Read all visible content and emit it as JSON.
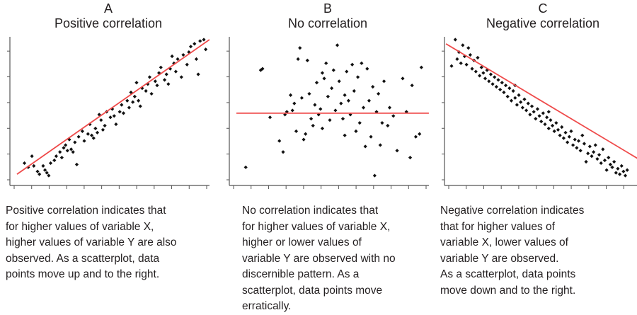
{
  "chart_data": [
    {
      "type": "scatter",
      "label": "A",
      "title": "Positive correlation",
      "xlim": [
        0,
        10
      ],
      "ylim": [
        0,
        10
      ],
      "trend_line": {
        "x": [
          0,
          10.3
        ],
        "y": [
          0.3,
          10.0
        ]
      },
      "points": [
        [
          0.4,
          1.1
        ],
        [
          0.6,
          0.8
        ],
        [
          0.8,
          1.6
        ],
        [
          0.9,
          0.9
        ],
        [
          1.1,
          0.5
        ],
        [
          1.2,
          0.3
        ],
        [
          1.4,
          0.9
        ],
        [
          1.5,
          0.6
        ],
        [
          1.6,
          0.4
        ],
        [
          1.7,
          0.2
        ],
        [
          1.8,
          1.1
        ],
        [
          2.0,
          1.3
        ],
        [
          2.1,
          1.6
        ],
        [
          2.3,
          1.9
        ],
        [
          2.4,
          1.5
        ],
        [
          2.5,
          2.2
        ],
        [
          2.6,
          2.4
        ],
        [
          2.7,
          2.0
        ],
        [
          2.8,
          2.8
        ],
        [
          2.9,
          2.1
        ],
        [
          3.0,
          1.9
        ],
        [
          3.1,
          2.6
        ],
        [
          3.2,
          1.0
        ],
        [
          3.3,
          3.0
        ],
        [
          3.5,
          3.4
        ],
        [
          3.6,
          2.7
        ],
        [
          3.8,
          3.2
        ],
        [
          3.9,
          3.9
        ],
        [
          4.0,
          3.1
        ],
        [
          4.1,
          2.9
        ],
        [
          4.2,
          3.6
        ],
        [
          4.3,
          3.3
        ],
        [
          4.5,
          4.2
        ],
        [
          4.6,
          3.5
        ],
        [
          4.7,
          3.8
        ],
        [
          4.8,
          4.8
        ],
        [
          5.0,
          4.4
        ],
        [
          5.1,
          5.0
        ],
        [
          5.2,
          4.5
        ],
        [
          5.3,
          3.9
        ],
        [
          5.5,
          4.8
        ],
        [
          5.6,
          5.3
        ],
        [
          5.7,
          4.7
        ],
        [
          5.9,
          5.6
        ],
        [
          6.0,
          5.1
        ],
        [
          6.1,
          6.2
        ],
        [
          6.2,
          5.5
        ],
        [
          6.3,
          5.9
        ],
        [
          6.5,
          5.6
        ],
        [
          6.6,
          5.2
        ],
        [
          6.7,
          6.5
        ],
        [
          6.9,
          6.3
        ],
        [
          7.0,
          6.8
        ],
        [
          7.1,
          7.3
        ],
        [
          7.2,
          6.1
        ],
        [
          7.4,
          7.0
        ],
        [
          7.5,
          6.7
        ],
        [
          7.6,
          7.6
        ],
        [
          7.7,
          8.0
        ],
        [
          7.9,
          7.1
        ],
        [
          8.0,
          7.5
        ],
        [
          8.1,
          6.8
        ],
        [
          8.2,
          7.9
        ],
        [
          8.4,
          8.3
        ],
        [
          8.5,
          7.7
        ],
        [
          8.6,
          8.6
        ],
        [
          8.8,
          7.3
        ],
        [
          8.9,
          8.9
        ],
        [
          9.1,
          8.2
        ],
        [
          9.2,
          9.1
        ],
        [
          9.3,
          9.5
        ],
        [
          9.5,
          9.7
        ],
        [
          9.6,
          8.6
        ],
        [
          9.8,
          9.9
        ],
        [
          10.0,
          10.0
        ],
        [
          10.1,
          9.3
        ],
        [
          9.7,
          7.5
        ],
        [
          8.3,
          8.8
        ],
        [
          6.4,
          6.9
        ],
        [
          4.4,
          4.6
        ]
      ]
    },
    {
      "type": "scatter",
      "label": "B",
      "title": "No correlation",
      "xlim": [
        0,
        10
      ],
      "ylim": [
        0,
        10
      ],
      "trend_line": {
        "x": [
          0,
          10.3
        ],
        "y": [
          4.7,
          4.7
        ]
      },
      "points": [
        [
          0.5,
          0.8
        ],
        [
          1.3,
          7.8
        ],
        [
          1.4,
          7.9
        ],
        [
          1.8,
          4.4
        ],
        [
          2.3,
          2.7
        ],
        [
          2.5,
          1.9
        ],
        [
          2.6,
          4.6
        ],
        [
          2.7,
          4.8
        ],
        [
          2.9,
          6.0
        ],
        [
          3.0,
          4.9
        ],
        [
          3.2,
          3.4
        ],
        [
          3.3,
          8.6
        ],
        [
          3.4,
          9.4
        ],
        [
          3.5,
          5.8
        ],
        [
          3.6,
          2.8
        ],
        [
          3.7,
          3.2
        ],
        [
          3.8,
          8.5
        ],
        [
          3.9,
          6.1
        ],
        [
          4.0,
          4.3
        ],
        [
          4.1,
          3.8
        ],
        [
          4.2,
          5.3
        ],
        [
          4.3,
          6.9
        ],
        [
          4.4,
          4.6
        ],
        [
          4.5,
          5.0
        ],
        [
          4.6,
          3.6
        ],
        [
          4.7,
          7.2
        ],
        [
          4.8,
          8.3
        ],
        [
          4.9,
          5.9
        ],
        [
          5.0,
          4.2
        ],
        [
          5.1,
          6.5
        ],
        [
          5.2,
          7.8
        ],
        [
          5.3,
          4.9
        ],
        [
          5.4,
          9.6
        ],
        [
          5.5,
          7.0
        ],
        [
          5.6,
          5.4
        ],
        [
          5.7,
          4.3
        ],
        [
          5.8,
          3.1
        ],
        [
          5.9,
          7.7
        ],
        [
          6.0,
          5.6
        ],
        [
          6.1,
          4.6
        ],
        [
          6.2,
          8.2
        ],
        [
          6.3,
          6.3
        ],
        [
          6.4,
          3.4
        ],
        [
          6.5,
          7.3
        ],
        [
          6.6,
          4.0
        ],
        [
          6.7,
          8.3
        ],
        [
          6.8,
          5.1
        ],
        [
          6.9,
          2.3
        ],
        [
          7.0,
          7.9
        ],
        [
          7.1,
          5.6
        ],
        [
          7.2,
          3.0
        ],
        [
          7.3,
          6.6
        ],
        [
          7.4,
          0.2
        ],
        [
          7.5,
          4.8
        ],
        [
          7.6,
          6.1
        ],
        [
          7.7,
          2.4
        ],
        [
          7.8,
          4.0
        ],
        [
          7.9,
          7.0
        ],
        [
          8.1,
          3.8
        ],
        [
          8.2,
          5.1
        ],
        [
          8.4,
          4.5
        ],
        [
          8.6,
          2.0
        ],
        [
          8.9,
          7.2
        ],
        [
          9.1,
          4.8
        ],
        [
          9.3,
          1.5
        ],
        [
          9.4,
          6.7
        ],
        [
          9.6,
          3.0
        ],
        [
          9.8,
          3.2
        ],
        [
          9.9,
          8.0
        ],
        [
          3.1,
          5.4
        ],
        [
          4.6,
          7.6
        ],
        [
          5.8,
          6.0
        ]
      ]
    },
    {
      "type": "scatter",
      "label": "C",
      "title": "Negative correlation",
      "xlim": [
        0,
        10
      ],
      "ylim": [
        0,
        10
      ],
      "trend_line": {
        "x": [
          -0.3,
          10.0
        ],
        "y": [
          9.7,
          1.4
        ]
      },
      "points": [
        [
          0.0,
          8.1
        ],
        [
          0.2,
          10.0
        ],
        [
          0.3,
          8.6
        ],
        [
          0.4,
          9.1
        ],
        [
          0.5,
          8.3
        ],
        [
          0.6,
          9.6
        ],
        [
          0.7,
          8.8
        ],
        [
          0.8,
          8.2
        ],
        [
          0.9,
          9.4
        ],
        [
          1.0,
          8.9
        ],
        [
          1.1,
          7.9
        ],
        [
          1.2,
          8.5
        ],
        [
          1.3,
          7.7
        ],
        [
          1.4,
          8.7
        ],
        [
          1.5,
          7.4
        ],
        [
          1.6,
          8.0
        ],
        [
          1.7,
          7.6
        ],
        [
          1.8,
          7.2
        ],
        [
          1.9,
          7.8
        ],
        [
          2.0,
          7.0
        ],
        [
          2.1,
          7.5
        ],
        [
          2.2,
          6.8
        ],
        [
          2.3,
          7.3
        ],
        [
          2.4,
          6.6
        ],
        [
          2.5,
          7.1
        ],
        [
          2.6,
          6.4
        ],
        [
          2.7,
          6.9
        ],
        [
          2.8,
          6.2
        ],
        [
          2.9,
          6.7
        ],
        [
          3.0,
          5.9
        ],
        [
          3.1,
          6.5
        ],
        [
          3.2,
          5.6
        ],
        [
          3.3,
          6.3
        ],
        [
          3.4,
          5.8
        ],
        [
          3.5,
          5.3
        ],
        [
          3.6,
          6.0
        ],
        [
          3.7,
          5.5
        ],
        [
          3.8,
          5.1
        ],
        [
          3.9,
          5.7
        ],
        [
          4.0,
          4.9
        ],
        [
          4.1,
          5.4
        ],
        [
          4.2,
          4.6
        ],
        [
          4.3,
          5.2
        ],
        [
          4.4,
          4.8
        ],
        [
          4.5,
          4.3
        ],
        [
          4.6,
          5.0
        ],
        [
          4.7,
          4.5
        ],
        [
          4.8,
          4.1
        ],
        [
          4.9,
          4.7
        ],
        [
          5.0,
          3.9
        ],
        [
          5.1,
          4.4
        ],
        [
          5.2,
          3.6
        ],
        [
          5.3,
          4.2
        ],
        [
          5.4,
          3.8
        ],
        [
          5.5,
          3.4
        ],
        [
          5.6,
          4.0
        ],
        [
          5.7,
          3.5
        ],
        [
          5.8,
          3.1
        ],
        [
          5.9,
          3.7
        ],
        [
          6.0,
          2.9
        ],
        [
          6.1,
          3.3
        ],
        [
          6.2,
          2.6
        ],
        [
          6.3,
          3.0
        ],
        [
          6.4,
          3.4
        ],
        [
          6.5,
          2.4
        ],
        [
          6.6,
          2.8
        ],
        [
          6.7,
          2.2
        ],
        [
          6.8,
          2.7
        ],
        [
          6.9,
          2.0
        ],
        [
          7.0,
          3.1
        ],
        [
          7.1,
          2.5
        ],
        [
          7.2,
          1.2
        ],
        [
          7.3,
          1.8
        ],
        [
          7.4,
          2.3
        ],
        [
          7.5,
          1.6
        ],
        [
          7.6,
          1.9
        ],
        [
          7.7,
          2.4
        ],
        [
          7.8,
          1.4
        ],
        [
          7.9,
          1.7
        ],
        [
          8.0,
          1.1
        ],
        [
          8.1,
          2.1
        ],
        [
          8.2,
          1.3
        ],
        [
          8.3,
          0.6
        ],
        [
          8.4,
          1.5
        ],
        [
          8.5,
          1.0
        ],
        [
          8.6,
          0.8
        ],
        [
          8.7,
          1.2
        ],
        [
          8.8,
          0.4
        ],
        [
          8.9,
          0.7
        ],
        [
          9.0,
          0.3
        ],
        [
          9.1,
          0.9
        ],
        [
          9.2,
          0.5
        ],
        [
          9.3,
          0.2
        ],
        [
          9.4,
          0.6
        ],
        [
          3.4,
          6.7
        ],
        [
          5.2,
          4.8
        ]
      ]
    }
  ],
  "panels": [
    {
      "label": "A",
      "subtitle": "Positive correlation",
      "description": [
        "Positive correlation indicates that",
        "for higher values of variable X,",
        "higher values of variable Y are also",
        "observed. As a scatterplot, data",
        "points move up and to the right."
      ]
    },
    {
      "label": "B",
      "subtitle": "No correlation",
      "description": [
        "No correlation indicates that",
        "for higher values of variable X,",
        "higher or lower values of",
        "variable Y are observed with no",
        "discernible pattern. As a",
        "scatterplot, data points move",
        "erratically."
      ]
    },
    {
      "label": "C",
      "subtitle": "Negative correlation",
      "description": [
        "Negative correlation indicates",
        "that for higher values of",
        "variable X, lower values of",
        "variable Y are observed.",
        "As a scatterplot, data points",
        "move down and to the right."
      ]
    }
  ],
  "colors": {
    "trend_line": "#ef4b4b",
    "points": "#111111",
    "axis": "#555555",
    "text": "#231f20"
  }
}
